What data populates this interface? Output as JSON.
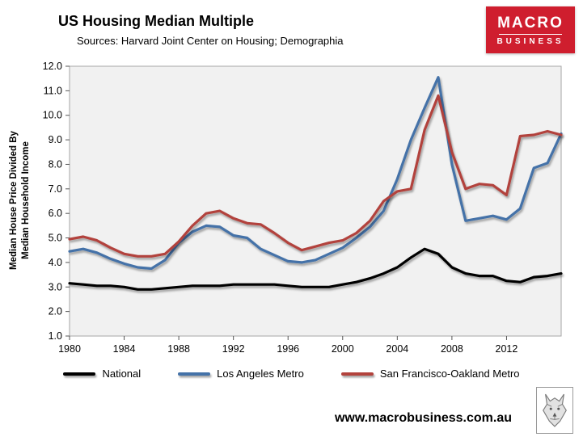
{
  "header": {
    "title": "US Housing Median Multiple",
    "subtitle": "Sources: Harvard Joint Center on Housing; Demographia"
  },
  "logo": {
    "top": "MACRO",
    "bottom": "BUSINESS",
    "background": "#cf1e2e"
  },
  "footer": {
    "website": "www.macrobusiness.com.au"
  },
  "chart_data": {
    "type": "line",
    "title": "US Housing Median Multiple",
    "ylabel_line1": "Median House Price Divided By",
    "ylabel_line2": "Median Household Income",
    "x_start": 1980,
    "x_end": 2016,
    "ylim": [
      1.0,
      12.0
    ],
    "grid": false,
    "plot_background": "#f1f1f1",
    "legend_position": "bottom",
    "xticks": [
      1980,
      1984,
      1988,
      1992,
      1996,
      2000,
      2004,
      2008,
      2012
    ],
    "ytick_labels": [
      "1.0",
      "2.0",
      "3.0",
      "4.0",
      "5.0",
      "6.0",
      "7.0",
      "8.0",
      "9.0",
      "10.0",
      "11.0",
      "12.0"
    ],
    "series": [
      {
        "name": "National",
        "color": "#000000",
        "values": [
          3.15,
          3.1,
          3.05,
          3.05,
          3.0,
          2.9,
          2.9,
          2.95,
          3.0,
          3.05,
          3.05,
          3.05,
          3.1,
          3.1,
          3.1,
          3.1,
          3.05,
          3.0,
          3.0,
          3.0,
          3.1,
          3.2,
          3.35,
          3.55,
          3.8,
          4.2,
          4.55,
          4.35,
          3.8,
          3.55,
          3.45,
          3.45,
          3.25,
          3.2,
          3.4,
          3.45,
          3.55
        ]
      },
      {
        "name": "Los Angeles Metro",
        "color": "#4472a8",
        "values": [
          4.45,
          4.55,
          4.4,
          4.15,
          3.95,
          3.8,
          3.75,
          4.1,
          4.8,
          5.25,
          5.5,
          5.45,
          5.1,
          5.0,
          4.55,
          4.3,
          4.05,
          4.0,
          4.1,
          4.35,
          4.6,
          5.0,
          5.45,
          6.1,
          7.4,
          9.0,
          10.3,
          11.55,
          8.0,
          5.7,
          5.8,
          5.9,
          5.75,
          6.2,
          7.85,
          8.05,
          9.25
        ]
      },
      {
        "name": "San Francisco-Oakland Metro",
        "color": "#b2423c",
        "values": [
          4.95,
          5.05,
          4.9,
          4.6,
          4.35,
          4.25,
          4.25,
          4.35,
          4.85,
          5.5,
          6.0,
          6.1,
          5.8,
          5.6,
          5.55,
          5.2,
          4.8,
          4.5,
          4.65,
          4.8,
          4.9,
          5.2,
          5.7,
          6.5,
          6.9,
          7.0,
          9.4,
          10.8,
          8.5,
          7.0,
          7.2,
          7.15,
          6.75,
          9.15,
          9.2,
          9.35,
          9.2
        ]
      }
    ]
  }
}
